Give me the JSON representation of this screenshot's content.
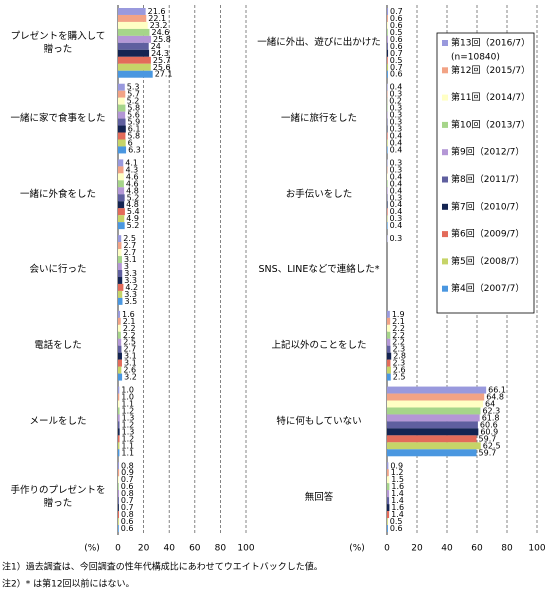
{
  "chart_data": [
    {
      "type": "bar",
      "orientation": "horizontal",
      "xlabel": "(%)",
      "xlim": [
        0,
        100
      ],
      "xticks": [
        0,
        20,
        40,
        60,
        80,
        100
      ],
      "grid": true,
      "categories": [
        "プレゼントを購入して\n贈った",
        "一緒に家で食事をした",
        "一緒に外食をした",
        "会いに行った",
        "電話をした",
        "メールをした",
        "手作りのプレゼントを\n贈った"
      ],
      "series": [
        {
          "color": "#9999dd",
          "values": [
            21.6,
            5.3,
            4.1,
            2.5,
            1.6,
            1.0,
            0.8
          ],
          "value_labels": [
            "21.6",
            "5.3",
            "4.1",
            "2.5",
            "1.6",
            "1.0",
            "0.8"
          ]
        },
        {
          "color": "#f2a385",
          "values": [
            22.1,
            5.7,
            4.3,
            2.7,
            2.1,
            1.0,
            0.9
          ],
          "value_labels": [
            "22.1",
            "5.7",
            "4.3",
            "2.7",
            "2.1",
            "1.0",
            "0.9"
          ]
        },
        {
          "color": "#ffffc4",
          "values": [
            23.2,
            5.2,
            4.6,
            2.7,
            2.2,
            1.1,
            0.7
          ]
        },
        {
          "color": "#a6d58a",
          "values": [
            24.6,
            5.8,
            4.6,
            3.1,
            2.2,
            1.2,
            0.6
          ]
        },
        {
          "color": "#b497d6",
          "values": [
            25.8,
            5.6,
            4.8,
            3.0,
            2.5,
            1.3,
            0.8
          ]
        },
        {
          "color": "#5f5f9f",
          "values": [
            24.0,
            5.9,
            5.2,
            3.3,
            2.7,
            1.2,
            0.7
          ]
        },
        {
          "color": "#142452",
          "values": [
            24.3,
            6.1,
            4.8,
            3.3,
            3.1,
            1.3,
            0.7
          ]
        },
        {
          "color": "#e36b5a",
          "values": [
            25.7,
            5.8,
            5.4,
            4.2,
            3.1,
            1.2,
            0.8
          ]
        },
        {
          "color": "#c6d468",
          "values": [
            25.6,
            6.0,
            4.9,
            3.3,
            2.6,
            1.1,
            0.6
          ]
        },
        {
          "color": "#4a97e0",
          "values": [
            27.1,
            6.3,
            5.2,
            3.5,
            3.2,
            1.1,
            0.6
          ]
        }
      ]
    },
    {
      "type": "bar",
      "orientation": "horizontal",
      "xlabel": "(%)",
      "xlim": [
        0,
        100
      ],
      "xticks": [
        0,
        20,
        40,
        60,
        80,
        100
      ],
      "grid": true,
      "categories": [
        "一緒に外出、遊びに出かけた",
        "一緒に旅行をした",
        "お手伝いをした",
        "SNS、LINEなどで連絡した*",
        "上記以外のことをした",
        "特に何もしていない",
        "無回答"
      ],
      "series": [
        {
          "name": "第13回（2016/7）",
          "n": "(n=10840)",
          "color": "#9999dd",
          "values": [
            0.7,
            0.4,
            0.3,
            0.3,
            1.9,
            66.1,
            0.9
          ]
        },
        {
          "name": "第12回（2015/7）",
          "color": "#f2a385",
          "values": [
            0.6,
            0.3,
            0.3,
            null,
            2.1,
            64.8,
            1.2
          ]
        },
        {
          "name": "第11回（2014/7）",
          "color": "#ffffc4",
          "values": [
            0.6,
            0.2,
            0.4,
            null,
            2.2,
            64.0,
            1.5
          ]
        },
        {
          "name": "第10回（2013/7）",
          "color": "#a6d58a",
          "values": [
            0.5,
            0.3,
            0.4,
            null,
            2.2,
            62.3,
            1.6
          ]
        },
        {
          "name": "第9回（2012/7）",
          "color": "#b497d6",
          "values": [
            0.6,
            0.3,
            0.4,
            null,
            2.2,
            61.8,
            1.4
          ]
        },
        {
          "name": "第8回（2011/7）",
          "color": "#5f5f9f",
          "values": [
            0.6,
            0.3,
            0.3,
            null,
            2.3,
            60.6,
            1.4
          ]
        },
        {
          "name": "第7回（2010/7）",
          "color": "#142452",
          "values": [
            0.7,
            0.3,
            0.4,
            null,
            2.8,
            60.9,
            1.6
          ]
        },
        {
          "name": "第6回（2009/7）",
          "color": "#e36b5a",
          "values": [
            0.5,
            0.4,
            0.4,
            null,
            2.3,
            59.7,
            1.4
          ]
        },
        {
          "name": "第5回（2008/7）",
          "color": "#c6d468",
          "values": [
            0.7,
            0.4,
            0.3,
            null,
            2.6,
            62.5,
            0.5
          ]
        },
        {
          "name": "第4回（2007/7）",
          "color": "#4a97e0",
          "values": [
            0.6,
            0.4,
            0.4,
            null,
            2.5,
            59.7,
            0.6
          ]
        }
      ]
    }
  ],
  "notes": [
    "注1）過去調査は、今回調査の性年代構成比にあわせてウエイトバックした値。",
    "注2）* は第12回以前にはない。"
  ]
}
